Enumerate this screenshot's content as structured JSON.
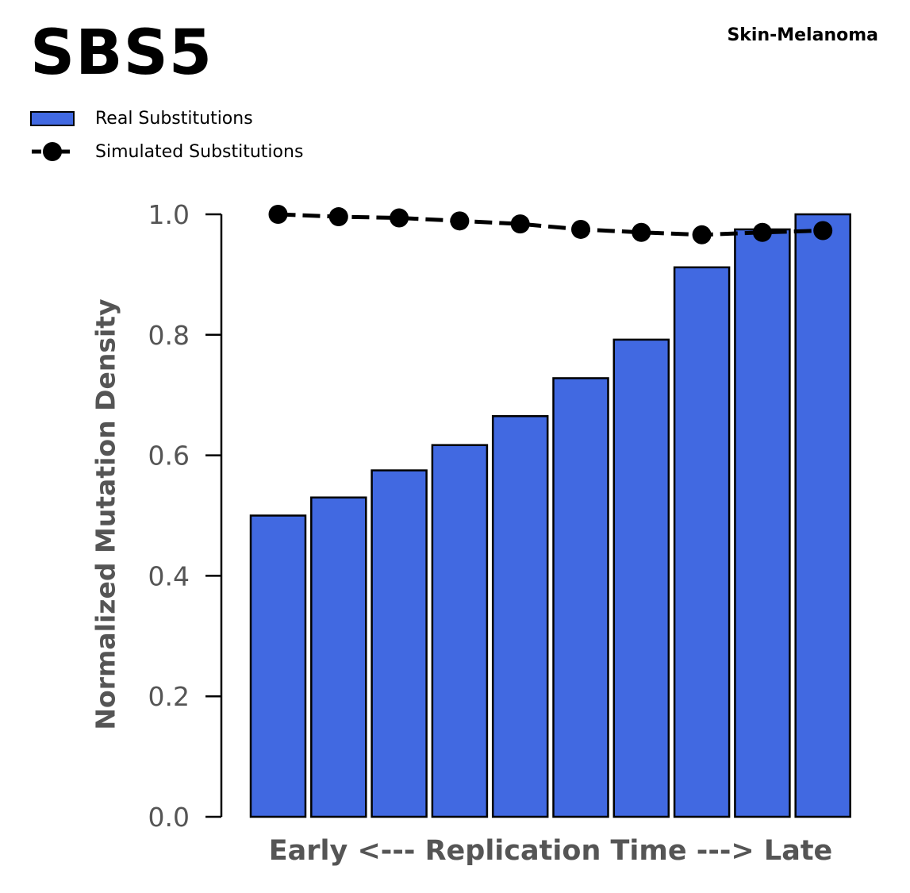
{
  "chart_data": {
    "type": "bar",
    "title": "SBS5",
    "subtitle": "Skin-Melanoma",
    "xlabel": "Early <--- Replication Time ---> Late",
    "ylabel": "Normalized Mutation Density",
    "ylim": [
      0,
      1.0
    ],
    "yticks": [
      "0.0",
      "0.2",
      "0.4",
      "0.6",
      "0.8",
      "1.0"
    ],
    "grid": false,
    "legend_position": "top-left",
    "legend": {
      "bar_label": "Real Substitutions",
      "line_label": "Simulated Substitutions"
    },
    "series": [
      {
        "name": "Real Substitutions",
        "kind": "bar",
        "color": "#4169E1",
        "values": [
          0.5,
          0.53,
          0.575,
          0.617,
          0.665,
          0.728,
          0.792,
          0.912,
          0.975,
          1.0
        ]
      },
      {
        "name": "Simulated Substitutions",
        "kind": "line",
        "color": "#000000",
        "values": [
          1.0,
          0.996,
          0.994,
          0.989,
          0.984,
          0.975,
          0.97,
          0.966,
          0.97,
          0.973
        ]
      }
    ]
  }
}
